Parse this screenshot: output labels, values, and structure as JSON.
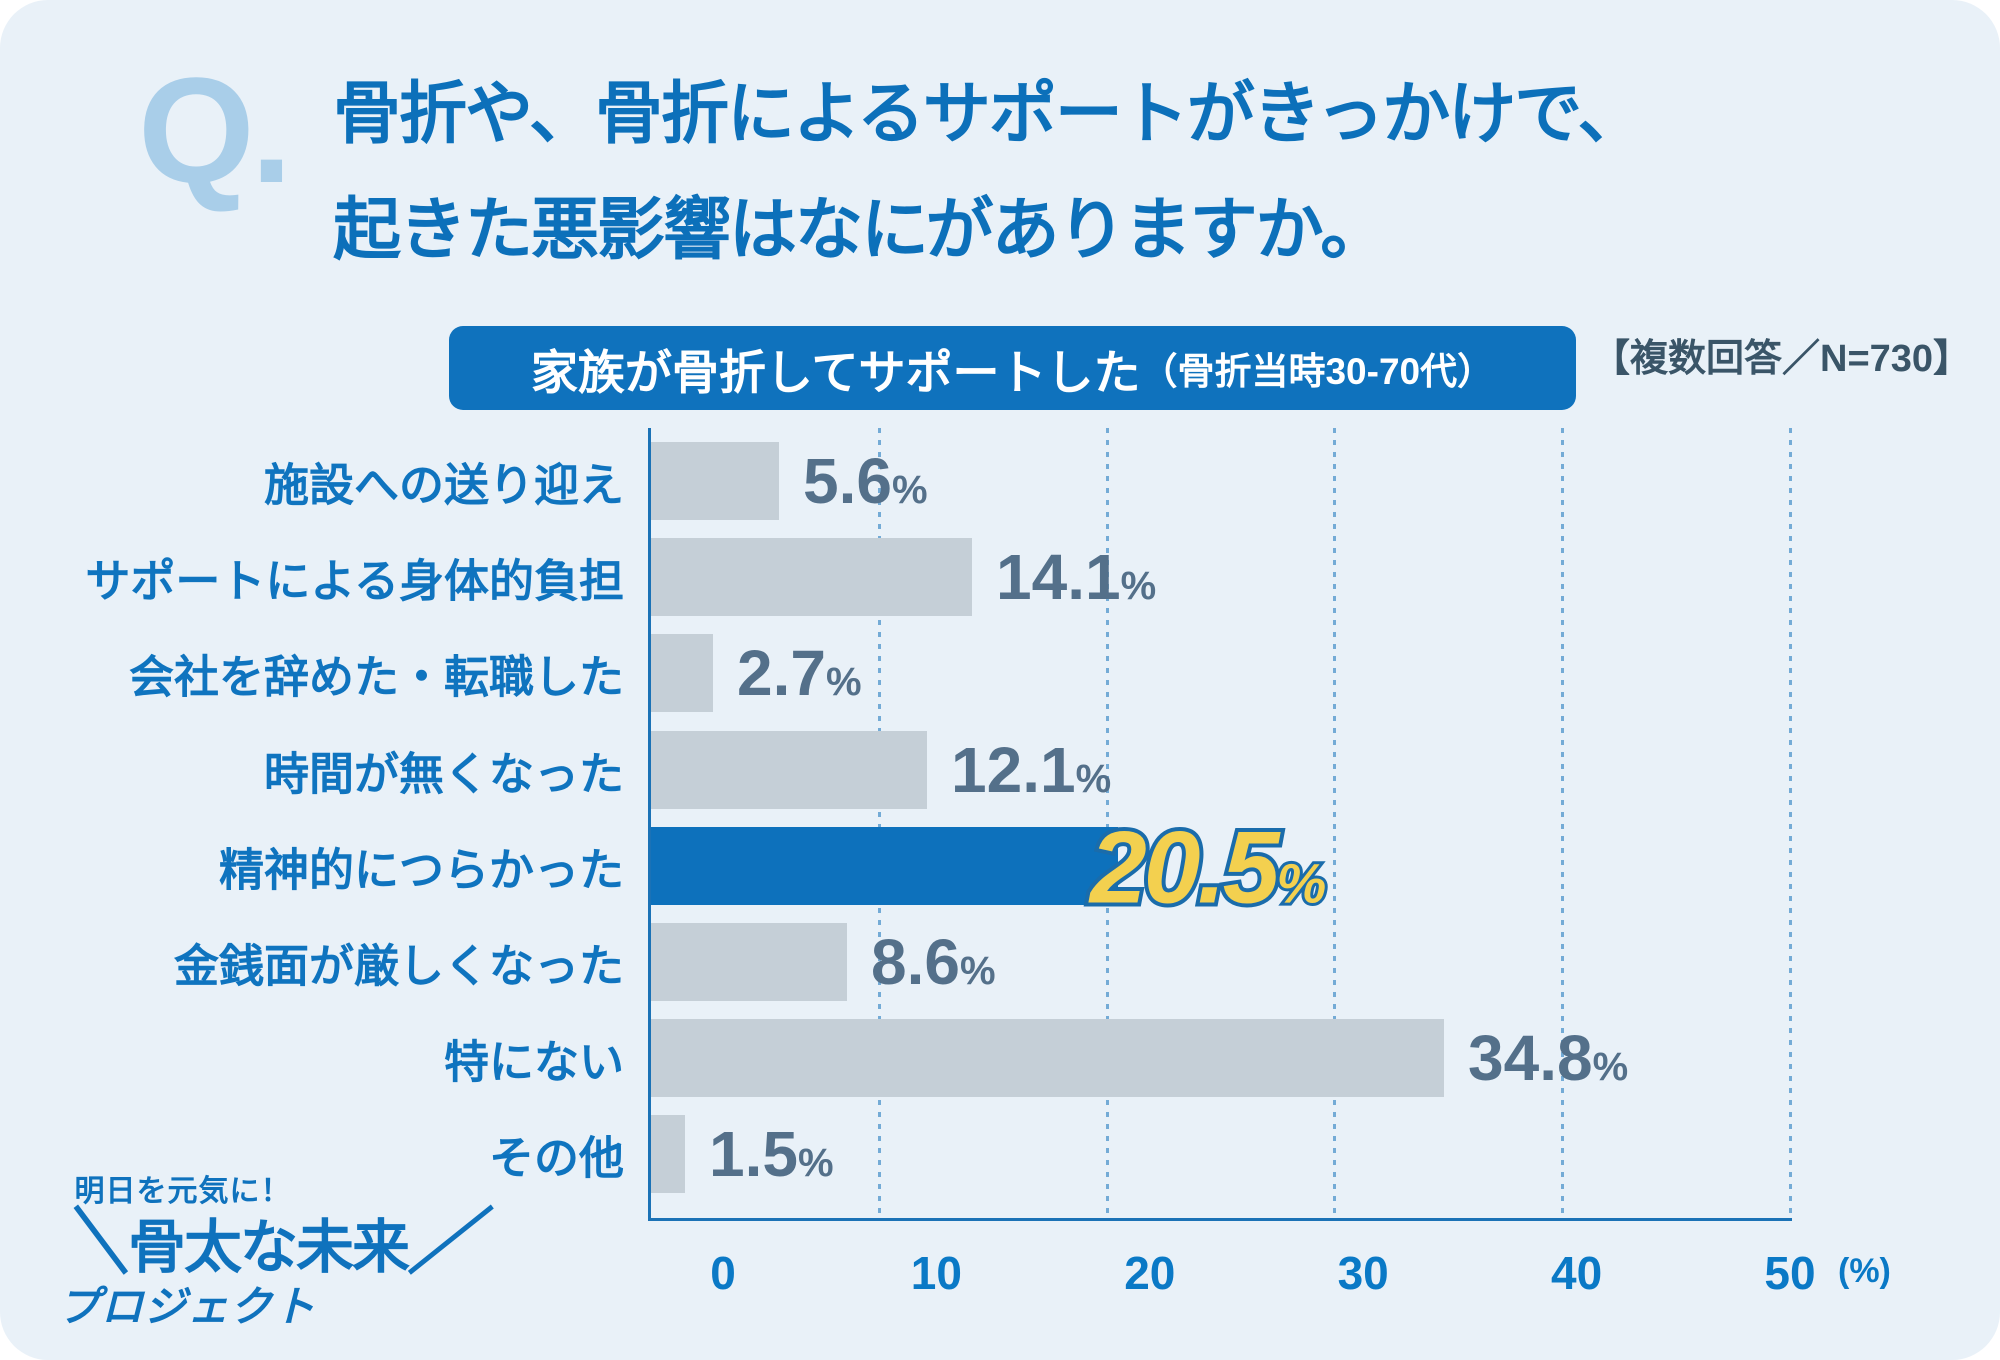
{
  "page": {
    "card_background": "#e9f1f8",
    "outer_background": "#ffffff"
  },
  "header": {
    "q_mark": "Q.",
    "title_line1": "骨折や、骨折によるサポートがきっかけで、",
    "title_line2": "起きた悪影響はなにがありますか。"
  },
  "subtitle": {
    "badge_main": "家族が骨折してサポートした",
    "badge_note": "（骨折当時30-70代）",
    "annotation": "【複数回答／N=730】"
  },
  "chart_data": {
    "type": "bar",
    "orientation": "horizontal",
    "title": "骨折や、骨折によるサポートがきっかけで、起きた悪影響はなにがありますか。",
    "subtitle": "家族が骨折してサポートした（骨折当時30-70代）【複数回答／N=730】",
    "categories": [
      "施設への送り迎え",
      "サポートによる身体的負担",
      "会社を辞めた・転職した",
      "時間が無くなった",
      "精神的につらかった",
      "金銭面が厳しくなった",
      "特にない",
      "その他"
    ],
    "values": [
      5.6,
      14.1,
      2.7,
      12.1,
      20.5,
      8.6,
      34.8,
      1.5
    ],
    "value_labels": [
      "5.6",
      "14.1",
      "2.7",
      "12.1",
      "20.5",
      "8.6",
      "34.8",
      "1.5"
    ],
    "percent_sign": "%",
    "highlight_index": 4,
    "xlim": [
      0,
      50
    ],
    "x_ticks": [
      "0",
      "10",
      "20",
      "30",
      "40",
      "50"
    ],
    "x_axis_unit_label": "(%)",
    "grid": "vertical dashed",
    "legend": "none",
    "colors": {
      "bar": "#c5cfd7",
      "highlight_bar": "#0d71bc",
      "value_text": "#54708a",
      "highlight_value_fill": "#f3d04f",
      "highlight_value_stroke": "#1a6cab",
      "category_text": "#0f74bf",
      "axis_text": "#0a79c6",
      "axis_line": "#1b72b6",
      "gridline": "#74abd6"
    }
  },
  "logo": {
    "tagline": "明日を元気に！",
    "main": "骨太な未来",
    "sub": "プロジェクト",
    "slash_left": "＼",
    "slash_right": "／"
  }
}
